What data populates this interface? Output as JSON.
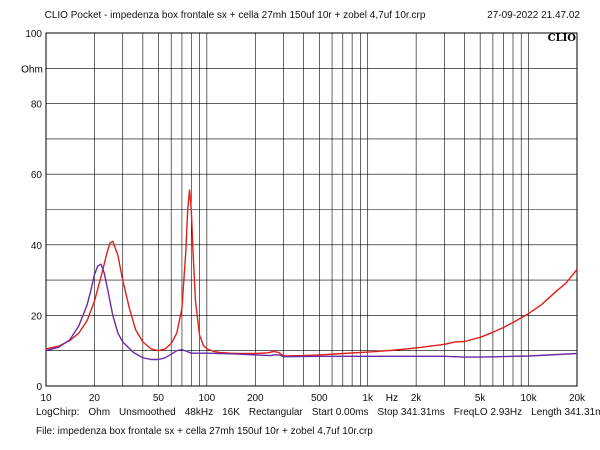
{
  "header": {
    "title": "CLIO Pocket - impedenza box frontale sx + cella 27mh 150uf 10r + zobel 4,7uf 10r.crp",
    "date": "27-09-2022 21.47.02",
    "watermark": "CLIO"
  },
  "footer": {
    "line1": [
      "LogChirp:",
      "Ohm",
      "Unsmoothed",
      "48kHz",
      "16K",
      "Rectangular",
      "Start 0.00ms",
      "Stop 341.31ms",
      "FreqLO 2.93Hz",
      "Length 341.31ms"
    ],
    "line2": "File: impedenza box frontale sx + cella 27mh 150uf 10r + zobel 4,7uf 10r.crp"
  },
  "chart_data": {
    "type": "line",
    "title": "",
    "xlabel": "Hz",
    "ylabel": "Ohm",
    "xscale": "log",
    "xlim": [
      10,
      20000
    ],
    "ylim": [
      0,
      100
    ],
    "x_ticks": [
      {
        "value": 10,
        "label": "10"
      },
      {
        "value": 20,
        "label": "20"
      },
      {
        "value": 50,
        "label": "50"
      },
      {
        "value": 100,
        "label": "100"
      },
      {
        "value": 200,
        "label": "200"
      },
      {
        "value": 500,
        "label": "500"
      },
      {
        "value": 1000,
        "label": "1k"
      },
      {
        "value": 2000,
        "label": "2k"
      },
      {
        "value": 5000,
        "label": "5k"
      },
      {
        "value": 10000,
        "label": "10k"
      },
      {
        "value": 20000,
        "label": "20k"
      }
    ],
    "y_ticks": [
      {
        "value": 0,
        "label": "0"
      },
      {
        "value": 20,
        "label": "20"
      },
      {
        "value": 40,
        "label": "40"
      },
      {
        "value": 60,
        "label": "60"
      },
      {
        "value": 80,
        "label": "80"
      },
      {
        "value": 100,
        "label": "100"
      }
    ],
    "grid": true,
    "colors": {
      "red": "#e0201a",
      "purple": "#6a2aa8",
      "grid": "#000000"
    },
    "series": [
      {
        "color": "#e0201a",
        "x": [
          10,
          12,
          14,
          16,
          18,
          20,
          22,
          24,
          25,
          26,
          28,
          30,
          33,
          36,
          40,
          45,
          50,
          55,
          60,
          65,
          70,
          74,
          76,
          78,
          80,
          82,
          85,
          90,
          95,
          100,
          110,
          120,
          140,
          160,
          200,
          240,
          260,
          280,
          300,
          400,
          500,
          700,
          1000,
          1500,
          2000,
          3000,
          3500,
          4000,
          5000,
          6000,
          7000,
          8000,
          10000,
          12000,
          15000,
          17000,
          20000
        ],
        "y": [
          10.5,
          11.3,
          12.8,
          15,
          18.5,
          24,
          31,
          38,
          40.5,
          41,
          37,
          30,
          22,
          16,
          12.5,
          10.5,
          10,
          10.5,
          12,
          15,
          22,
          38,
          50,
          55.5,
          50,
          38,
          24,
          14.5,
          11.5,
          10.5,
          9.8,
          9.5,
          9.3,
          9.2,
          9.2,
          9.4,
          9.8,
          9.5,
          8.5,
          8.6,
          8.8,
          9.2,
          9.6,
          10.2,
          10.8,
          11.8,
          12.5,
          12.6,
          13.8,
          15.2,
          16.6,
          18,
          20.5,
          23,
          27,
          29,
          33
        ]
      },
      {
        "color": "#6a2aa8",
        "x": [
          10,
          12,
          14,
          16,
          18,
          19,
          20,
          21,
          22,
          23,
          24,
          26,
          28,
          30,
          35,
          40,
          45,
          50,
          55,
          60,
          65,
          70,
          75,
          80,
          90,
          100,
          150,
          200,
          250,
          260,
          280,
          300,
          500,
          1000,
          2000,
          3000,
          4000,
          5000,
          10000,
          20000
        ],
        "y": [
          10,
          11,
          13,
          17,
          23,
          27,
          31.5,
          34,
          34.5,
          32,
          28,
          20,
          15,
          12.5,
          9.5,
          8,
          7.5,
          7.5,
          8,
          9,
          10,
          10.3,
          9.8,
          9.3,
          9.3,
          9.3,
          9.1,
          8.8,
          8.6,
          8.8,
          8.8,
          8.3,
          8.4,
          8.4,
          8.4,
          8.4,
          8.2,
          8.2,
          8.5,
          9.2
        ]
      }
    ]
  }
}
